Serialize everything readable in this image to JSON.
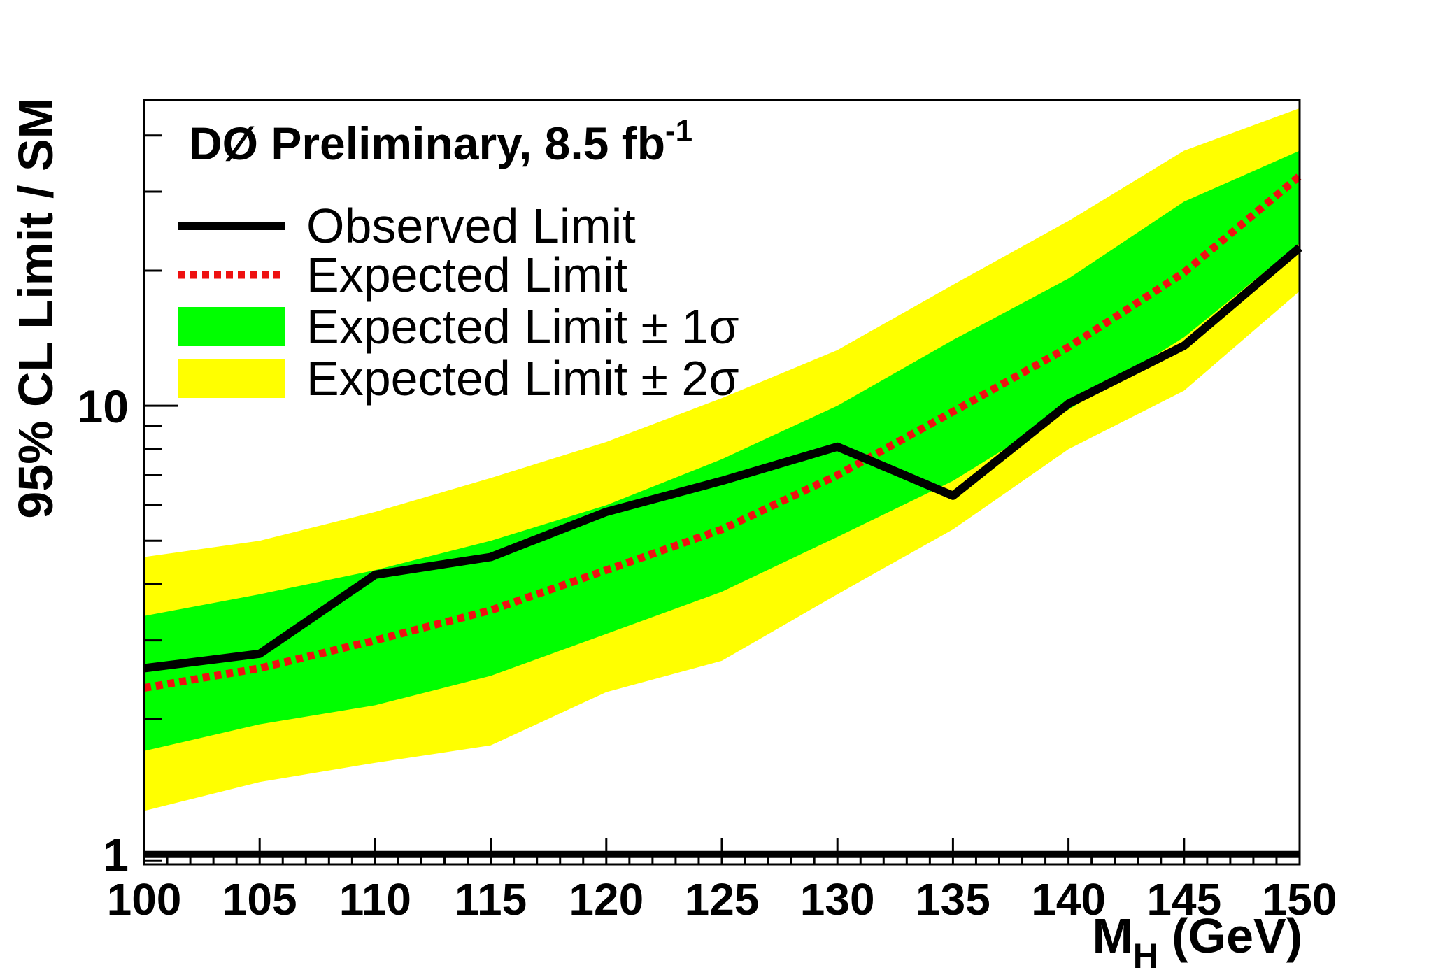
{
  "chart_data": {
    "type": "line",
    "title": "DØ Preliminary, 8.5 fb",
    "title_superscript": "-1",
    "xlabel_main": "M",
    "xlabel_sub": "H",
    "xlabel_unit": " (GeV)",
    "ylabel": "95% CL Limit / SM",
    "y_scale": "log",
    "xlim": [
      100,
      150
    ],
    "ylim": [
      0.95,
      48
    ],
    "x_ticks": [
      100,
      105,
      110,
      115,
      120,
      125,
      130,
      135,
      140,
      145,
      150
    ],
    "x_tick_labels": [
      "100",
      "105",
      "110",
      "115",
      "120",
      "125",
      "130",
      "135",
      "140",
      "145",
      "150"
    ],
    "y_ticks": [
      1,
      10
    ],
    "y_tick_labels": [
      "1",
      "10"
    ],
    "x": [
      100,
      105,
      110,
      115,
      120,
      125,
      130,
      135,
      140,
      145,
      150
    ],
    "series": [
      {
        "name": "Observed Limit",
        "style": "solid",
        "color": "#000000",
        "values": [
          2.6,
          2.8,
          4.2,
          4.6,
          5.8,
          6.8,
          8.1,
          6.3,
          10.1,
          13.6,
          22.5
        ]
      },
      {
        "name": "Expected Limit",
        "style": "dotted",
        "color": "#ee1111",
        "values": [
          2.35,
          2.6,
          3.0,
          3.5,
          4.3,
          5.3,
          7.0,
          9.7,
          13.5,
          19.8,
          32.5
        ]
      }
    ],
    "bands": [
      {
        "name": "Expected Limit ± 2σ",
        "color": "#ffff00",
        "lower": [
          1.25,
          1.45,
          1.6,
          1.75,
          2.3,
          2.7,
          3.8,
          5.3,
          8.0,
          10.8,
          18.0
        ],
        "upper": [
          4.6,
          5.0,
          5.8,
          6.9,
          8.3,
          10.4,
          13.3,
          18.6,
          25.8,
          37.0,
          46.0
        ]
      },
      {
        "name": "Expected Limit ± 1σ",
        "color": "#00ff00",
        "lower": [
          1.7,
          1.95,
          2.15,
          2.5,
          3.1,
          3.85,
          5.1,
          6.8,
          9.8,
          14.2,
          23.0
        ],
        "upper": [
          3.4,
          3.8,
          4.3,
          5.0,
          6.0,
          7.6,
          10.0,
          14.0,
          19.2,
          28.5,
          37.0
        ]
      }
    ],
    "reference_line": {
      "y": 1,
      "color": "#000000"
    },
    "legend": {
      "placement": "top-left",
      "entries": [
        {
          "label": "Observed Limit",
          "kind": "solid-line",
          "color": "#000000"
        },
        {
          "label": "Expected Limit",
          "kind": "dotted-line",
          "color": "#ee1111"
        },
        {
          "label": "Expected Limit ± 1σ",
          "kind": "fill",
          "color": "#00ff00"
        },
        {
          "label": "Expected Limit ± 2σ",
          "kind": "fill",
          "color": "#ffff00"
        }
      ]
    }
  }
}
